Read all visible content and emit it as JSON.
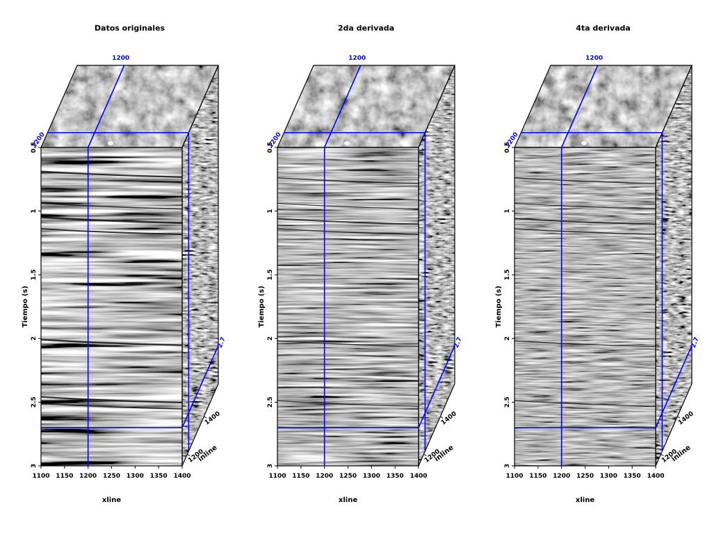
{
  "panels": [
    {
      "title": "Datos originales",
      "filter": "orig"
    },
    {
      "title": "2da derivada",
      "filter": "d2"
    },
    {
      "title": "4ta derivada",
      "filter": "d4"
    }
  ],
  "axes": {
    "time_label": "Tiempo (s)",
    "time_ticks": [
      "0.5",
      "1",
      "1.5",
      "2",
      "2.5",
      "3"
    ],
    "xline_label": "xline",
    "xline_ticks": [
      "1100",
      "1150",
      "1200",
      "1250",
      "1300",
      "1350",
      "1400"
    ],
    "inline_label": "inline",
    "inline_ticks": [
      "1200",
      "1400"
    ]
  },
  "slice_markers": {
    "xline": "1200",
    "inline": "1200",
    "time": "2.7"
  },
  "colors": {
    "slice_line": "#0000ff",
    "frame": "#000000"
  }
}
